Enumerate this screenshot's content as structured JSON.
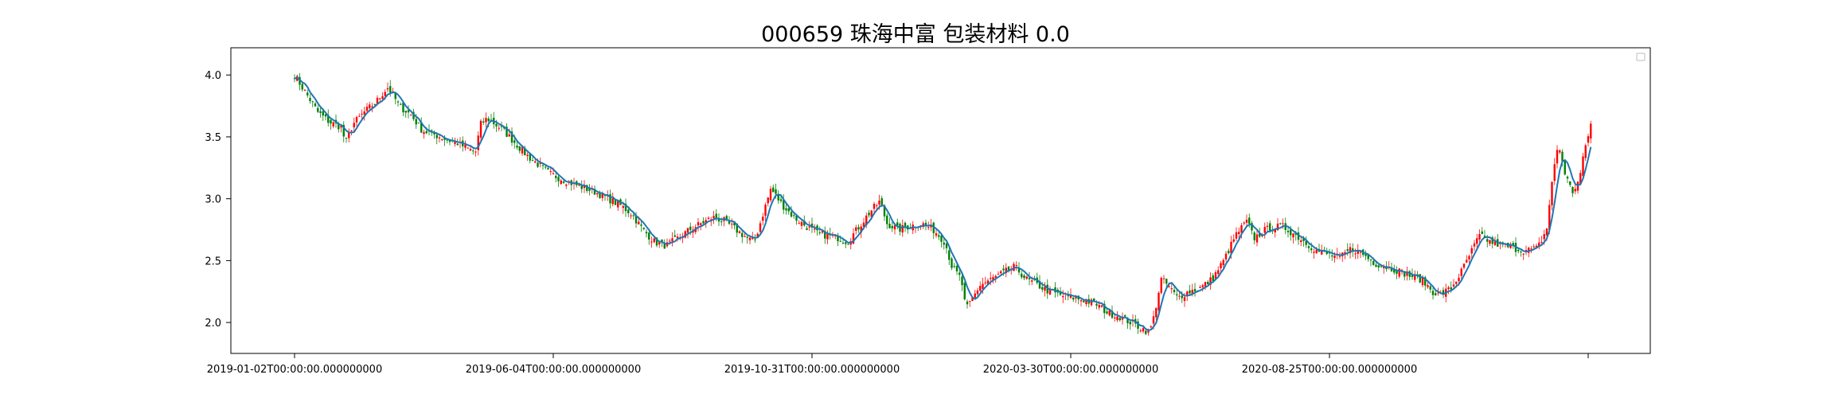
{
  "chart_data": {
    "type": "candlestick",
    "title": "000659 珠海中富 包装材料 0.0",
    "xlabel": "",
    "ylabel": "",
    "ylim": [
      1.75,
      4.22
    ],
    "yticks": [
      2.0,
      2.5,
      3.0,
      3.5,
      4.0
    ],
    "ytick_labels": [
      "2.0",
      "2.5",
      "3.0",
      "3.5",
      "4.0"
    ],
    "xticks": [
      {
        "index": 0,
        "label": "2019-01-02T00:00:00.000000000"
      },
      {
        "index": 100,
        "label": "2019-06-04T00:00:00.000000000"
      },
      {
        "index": 200,
        "label": "2019-10-31T00:00:00.000000000"
      },
      {
        "index": 300,
        "label": "2020-03-30T00:00:00.000000000"
      },
      {
        "index": 400,
        "label": "2020-08-25T00:00:00.000000000"
      },
      {
        "index": 500,
        "label": ""
      }
    ],
    "n_bars": 502,
    "grid": false,
    "legend": {
      "position": "top-right",
      "entries": []
    },
    "colors": {
      "up": "#ff0000",
      "down": "#008000",
      "ma": "#1f77b4"
    },
    "price_anchors": [
      [
        0,
        4.0
      ],
      [
        5,
        3.85
      ],
      [
        10,
        3.7
      ],
      [
        15,
        3.62
      ],
      [
        20,
        3.58
      ],
      [
        22,
        3.45
      ],
      [
        25,
        3.6
      ],
      [
        30,
        3.7
      ],
      [
        35,
        3.78
      ],
      [
        40,
        3.9
      ],
      [
        42,
        3.85
      ],
      [
        45,
        3.75
      ],
      [
        50,
        3.68
      ],
      [
        55,
        3.55
      ],
      [
        60,
        3.52
      ],
      [
        65,
        3.48
      ],
      [
        70,
        3.45
      ],
      [
        75,
        3.4
      ],
      [
        78,
        3.38
      ],
      [
        80,
        3.6
      ],
      [
        83,
        3.65
      ],
      [
        90,
        3.55
      ],
      [
        100,
        3.35
      ],
      [
        110,
        3.2
      ],
      [
        120,
        3.12
      ],
      [
        130,
        3.05
      ],
      [
        140,
        2.95
      ],
      [
        145,
        2.88
      ],
      [
        150,
        2.75
      ],
      [
        155,
        2.65
      ],
      [
        160,
        2.62
      ],
      [
        165,
        2.68
      ],
      [
        170,
        2.75
      ],
      [
        175,
        2.8
      ],
      [
        180,
        2.85
      ],
      [
        185,
        2.82
      ],
      [
        190,
        2.75
      ],
      [
        195,
        2.68
      ],
      [
        198,
        2.65
      ],
      [
        202,
        2.9
      ],
      [
        205,
        3.08
      ],
      [
        210,
        2.95
      ],
      [
        215,
        2.85
      ],
      [
        220,
        2.78
      ],
      [
        225,
        2.72
      ],
      [
        230,
        2.7
      ],
      [
        235,
        2.68
      ],
      [
        238,
        2.65
      ],
      [
        242,
        2.75
      ],
      [
        248,
        2.9
      ],
      [
        252,
        2.98
      ],
      [
        255,
        2.8
      ],
      [
        260,
        2.75
      ],
      [
        265,
        2.78
      ],
      [
        270,
        2.8
      ],
      [
        275,
        2.75
      ],
      [
        280,
        2.65
      ],
      [
        283,
        2.45
      ],
      [
        287,
        2.35
      ],
      [
        289,
        2.1
      ],
      [
        292,
        2.2
      ],
      [
        295,
        2.3
      ],
      [
        300,
        2.35
      ],
      [
        305,
        2.4
      ],
      [
        310,
        2.45
      ],
      [
        315,
        2.35
      ],
      [
        320,
        2.3
      ],
      [
        325,
        2.25
      ],
      [
        330,
        2.22
      ],
      [
        335,
        2.2
      ],
      [
        340,
        2.18
      ],
      [
        345,
        2.15
      ],
      [
        350,
        2.08
      ],
      [
        355,
        2.05
      ],
      [
        360,
        2.0
      ],
      [
        365,
        1.95
      ],
      [
        368,
        1.92
      ],
      [
        370,
        2.05
      ],
      [
        373,
        2.35
      ],
      [
        376,
        2.3
      ],
      [
        380,
        2.2
      ],
      [
        385,
        2.25
      ],
      [
        390,
        2.28
      ],
      [
        395,
        2.35
      ],
      [
        400,
        2.5
      ],
      [
        405,
        2.7
      ],
      [
        410,
        2.82
      ],
      [
        413,
        2.68
      ],
      [
        418,
        2.75
      ],
      [
        425,
        2.78
      ],
      [
        430,
        2.72
      ],
      [
        435,
        2.65
      ],
      [
        440,
        2.58
      ],
      [
        445,
        2.55
      ],
      [
        450,
        2.52
      ],
      [
        455,
        2.6
      ],
      [
        460,
        2.55
      ],
      [
        465,
        2.48
      ],
      [
        470,
        2.45
      ],
      [
        475,
        2.42
      ],
      [
        480,
        2.38
      ],
      [
        485,
        2.35
      ],
      [
        490,
        2.25
      ],
      [
        493,
        2.22
      ],
      [
        498,
        2.28
      ],
      [
        502,
        2.4
      ],
      [
        506,
        2.55
      ],
      [
        510,
        2.7
      ],
      [
        515,
        2.65
      ],
      [
        520,
        2.62
      ],
      [
        525,
        2.6
      ],
      [
        530,
        2.58
      ],
      [
        535,
        2.6
      ],
      [
        539,
        2.75
      ],
      [
        541,
        3.1
      ],
      [
        544,
        3.45
      ],
      [
        547,
        3.2
      ],
      [
        550,
        3.05
      ],
      [
        553,
        3.15
      ],
      [
        556,
        3.45
      ],
      [
        558,
        3.6
      ]
    ]
  }
}
